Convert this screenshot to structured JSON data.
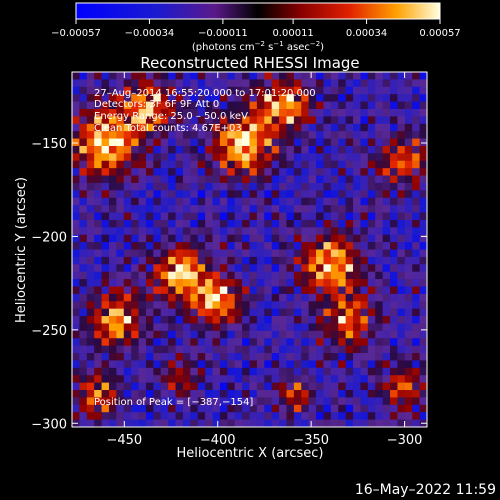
{
  "chart_data": {
    "type": "heatmap",
    "title": "Reconstructed RHESSI Image",
    "xlabel": "Heliocentric X (arcsec)",
    "ylabel": "Heliocentric Y (arcsec)",
    "xlim": [
      -478,
      -288
    ],
    "ylim": [
      -302,
      -112
    ],
    "x_ticks": [
      -450,
      -400,
      -350,
      -300
    ],
    "x_tick_labels": [
      "−450",
      "−400",
      "−350",
      "−300"
    ],
    "y_ticks": [
      -150,
      -200,
      -250,
      -300
    ],
    "y_tick_labels": [
      "−150",
      "−200",
      "−250",
      "−300"
    ],
    "colorbar": {
      "min": -0.00057,
      "max": 0.00057,
      "ticks": [
        -0.00057,
        -0.00034,
        -0.00011,
        0.00011,
        0.00034,
        0.00057
      ],
      "tick_labels": [
        "−0.00057",
        "−0.00034",
        "−0.00011",
        "0.00011",
        "0.00034",
        "0.00057"
      ],
      "unit_label": "(photons cm",
      "unit_sup1": "−2",
      "unit_mid": " s",
      "unit_sup2": "−1",
      "unit_mid2": " asec",
      "unit_sup3": "−2",
      "unit_end": ")"
    },
    "annotations": {
      "line1": "27–Aug–2014 16:55:20.000 to 17:01:20.000",
      "line2": "Detectors: 3F 6F 9F  Att 0",
      "line3": "Energy Range: 25.0 – 50.0 keV",
      "line4": "Clean    Total counts: 4.67E+03",
      "peak": "Position of Peak = [−387,−154]"
    },
    "peak_position": [
      -387,
      -154
    ],
    "grid_cells": 48,
    "bright_sources": [
      {
        "x": -460,
        "y": -150,
        "strength": 0.95,
        "spread": 18
      },
      {
        "x": -437,
        "y": -130,
        "strength": 0.8,
        "spread": 14
      },
      {
        "x": -387,
        "y": -150,
        "strength": 1.0,
        "spread": 16
      },
      {
        "x": -365,
        "y": -130,
        "strength": 0.9,
        "spread": 14
      },
      {
        "x": -420,
        "y": -220,
        "strength": 0.9,
        "spread": 15
      },
      {
        "x": -400,
        "y": -235,
        "strength": 0.85,
        "spread": 13
      },
      {
        "x": -340,
        "y": -215,
        "strength": 0.95,
        "spread": 16
      },
      {
        "x": -330,
        "y": -245,
        "strength": 0.75,
        "spread": 14
      },
      {
        "x": -455,
        "y": -245,
        "strength": 0.8,
        "spread": 15
      },
      {
        "x": -465,
        "y": -285,
        "strength": 0.7,
        "spread": 12
      },
      {
        "x": -300,
        "y": -160,
        "strength": 0.7,
        "spread": 14
      },
      {
        "x": -300,
        "y": -280,
        "strength": 0.6,
        "spread": 12
      },
      {
        "x": -360,
        "y": -285,
        "strength": 0.55,
        "spread": 10
      },
      {
        "x": -420,
        "y": -275,
        "strength": 0.45,
        "spread": 11
      }
    ]
  },
  "footer": {
    "timestamp": "16–May–2022 11:59"
  }
}
